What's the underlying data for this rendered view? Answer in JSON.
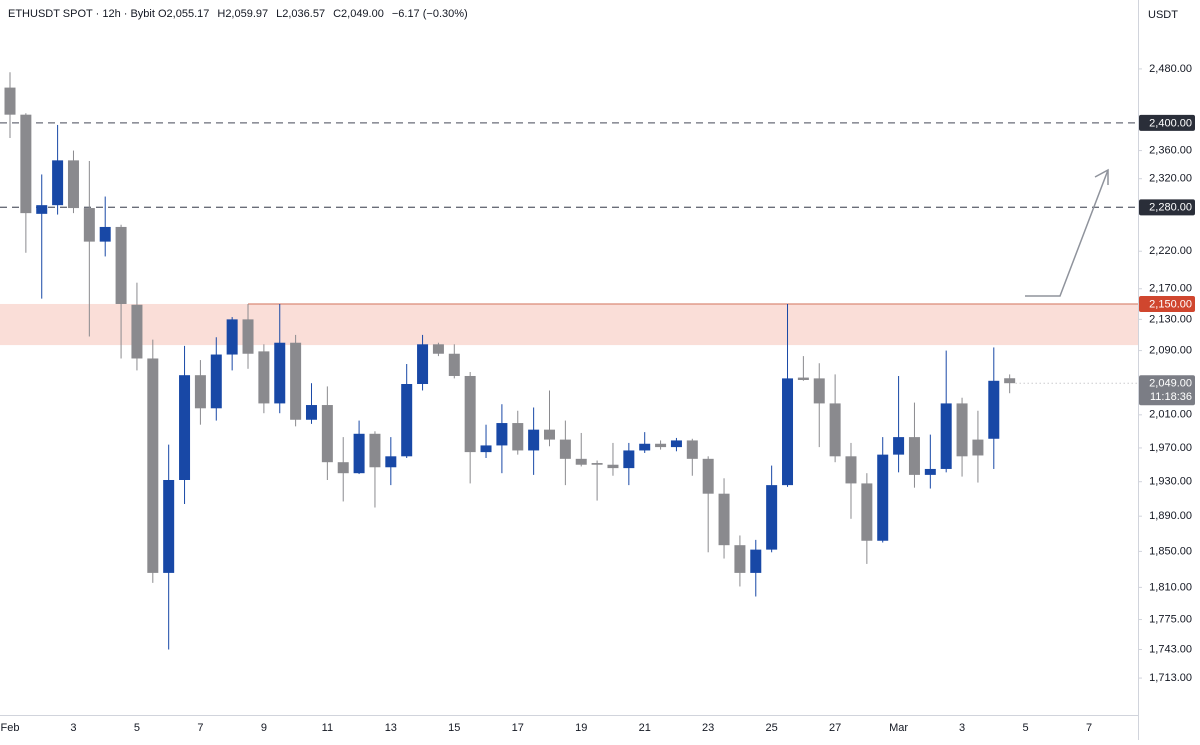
{
  "chart_data": {
    "type": "candlestick",
    "title": "ETHUSDT SPOT · 12h · Bybit",
    "readout": [
      "O2,055.17",
      "H2,059.97",
      "L2,036.57",
      "C2,049.00",
      "−6.17 (−0.30%)"
    ],
    "y_unit": "USDT",
    "log_scale": true,
    "up_color": "#1848a6",
    "down_color": "#8a8a8e",
    "categories": [
      "Feb",
      null,
      null,
      null,
      "3",
      null,
      null,
      null,
      "5",
      null,
      null,
      null,
      "7",
      null,
      null,
      null,
      "9",
      null,
      null,
      null,
      "11",
      null,
      null,
      null,
      "13",
      null,
      null,
      null,
      "15",
      null,
      null,
      null,
      "17",
      null,
      null,
      null,
      "19",
      null,
      null,
      null,
      "21",
      null,
      null,
      null,
      "23",
      null,
      null,
      null,
      "25",
      null,
      null,
      null,
      "27",
      null,
      null,
      null,
      "Mar",
      null,
      null,
      null,
      "3",
      null,
      null,
      null,
      "5",
      null,
      null,
      null,
      "7"
    ],
    "open": [
      2452,
      2412,
      2271,
      2283,
      2346,
      2279,
      2233,
      2253,
      2149,
      2080,
      1826,
      1932,
      2059,
      2018,
      2085,
      2130,
      2089,
      2024,
      2100,
      2004,
      2022,
      1953,
      1940,
      1987,
      1947,
      1960,
      2048,
      2098,
      2086,
      2058,
      1965,
      1973,
      2000,
      1967,
      1992,
      1980,
      1957,
      1952,
      1950,
      1946,
      1967,
      1975,
      1971,
      1979,
      1957,
      1916,
      1857,
      1826,
      1852,
      1926,
      2056,
      2055,
      2024,
      1960,
      1928,
      1862,
      1962,
      1983,
      1938,
      1945,
      2024,
      1980,
      1981,
      2055.17,
      null,
      null,
      null,
      null,
      null
    ],
    "high": [
      2475,
      2414,
      2326,
      2397,
      2360,
      2345,
      2295,
      2256,
      2178,
      2104,
      1974,
      2096,
      2078,
      2107,
      2133,
      2150,
      2098,
      2150,
      2110,
      2049,
      2045,
      1983,
      2003,
      1990,
      1983,
      2073,
      2110,
      2100,
      2098,
      2063,
      1998,
      2023,
      2015,
      2019,
      2040,
      2003,
      1988,
      1955,
      1976,
      1976,
      1989,
      1979,
      1982,
      1981,
      1960,
      1934,
      1868,
      1863,
      1949,
      2150,
      2083,
      2074,
      2060,
      1976,
      1940,
      1983,
      2058,
      2025,
      1986,
      2090,
      2031,
      2015,
      2094,
      2059.97,
      null,
      null,
      null,
      null,
      null
    ],
    "low": [
      2378,
      2218,
      2157,
      2270,
      2272,
      2108,
      2213,
      2080,
      2065,
      1815,
      1743,
      1904,
      1998,
      2003,
      2065,
      2067,
      2012,
      2012,
      1996,
      1999,
      1932,
      1907,
      1939,
      1900,
      1926,
      1958,
      2040,
      2083,
      2055,
      1928,
      1958,
      1940,
      1962,
      1938,
      1972,
      1926,
      1948,
      1908,
      1937,
      1926,
      1964,
      1968,
      1966,
      1937,
      1849,
      1842,
      1811,
      1800,
      1849,
      1924,
      2052,
      1971,
      1953,
      1887,
      1836,
      1860,
      1941,
      1923,
      1922,
      1941,
      1936,
      1929,
      1945,
      2036.57,
      null,
      null,
      null,
      null,
      null
    ],
    "close": [
      2412,
      2272,
      2283,
      2346,
      2279,
      2233,
      2253,
      2150,
      2080,
      1826,
      1932,
      2059,
      2018,
      2085,
      2130,
      2086,
      2024,
      2100,
      2004,
      2022,
      1953,
      1940,
      1987,
      1947,
      1960,
      2048,
      2098,
      2086,
      2058,
      1965,
      1973,
      2000,
      1967,
      1992,
      1980,
      1957,
      1950,
      1950,
      1946,
      1967,
      1975,
      1971,
      1979,
      1957,
      1916,
      1857,
      1826,
      1852,
      1926,
      2055,
      2053,
      2024,
      1960,
      1928,
      1862,
      1962,
      1983,
      1938,
      1945,
      2024,
      1960,
      1961,
      2052,
      2049,
      null,
      null,
      null,
      null,
      null
    ],
    "ylim": [
      1675,
      2586
    ],
    "yticks": [
      {
        "value": 2480,
        "label": "2,480.00"
      },
      {
        "value": 2360,
        "label": "2,360.00"
      },
      {
        "value": 2320,
        "label": "2,320.00"
      },
      {
        "value": 2220,
        "label": "2,220.00"
      },
      {
        "value": 2170,
        "label": "2,170.00"
      },
      {
        "value": 2130,
        "label": "2,130.00"
      },
      {
        "value": 2090,
        "label": "2,090.00"
      },
      {
        "value": 2010,
        "label": "2,010.00"
      },
      {
        "value": 1970,
        "label": "1,970.00"
      },
      {
        "value": 1930,
        "label": "1,930.00"
      },
      {
        "value": 1890,
        "label": "1,890.00"
      },
      {
        "value": 1850,
        "label": "1,850.00"
      },
      {
        "value": 1810,
        "label": "1,810.00"
      },
      {
        "value": 1775,
        "label": "1,775.00"
      },
      {
        "value": 1743,
        "label": "1,743.00"
      },
      {
        "value": 1713,
        "label": "1,713.00"
      }
    ],
    "levels": [
      {
        "value": 2400,
        "label": "2,400.00",
        "color": "#2a2e39",
        "dashed": true
      },
      {
        "value": 2280,
        "label": "2,280.00",
        "color": "#2a2e39",
        "dashed": true
      },
      {
        "value": 2150,
        "label": "2,150.00",
        "color": "#d0462e",
        "dashed": false
      }
    ],
    "zone": {
      "low": 2097,
      "high": 2150,
      "color": "#f4b6a8"
    },
    "last_price": {
      "value": 2049,
      "label": "2,049.00",
      "countdown": "11:18:36",
      "color": "#7b7d85"
    }
  }
}
